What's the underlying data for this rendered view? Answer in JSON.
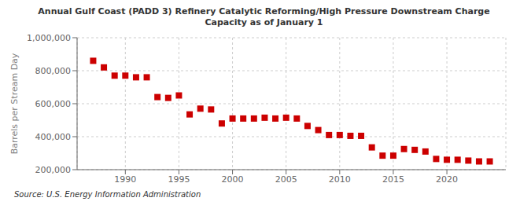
{
  "chart_data": {
    "type": "scatter",
    "title": "Annual Gulf Coast (PADD 3) Refinery Catalytic Reforming/High Pressure Downstream Charge\nCapacity as of January 1",
    "ylabel": "Barrels per Stream Day",
    "annotations": [
      "Source: U.S. Energy Information Administration"
    ],
    "x": [
      1987,
      1988,
      1989,
      1990,
      1991,
      1992,
      1993,
      1994,
      1995,
      1996,
      1997,
      1998,
      1999,
      2000,
      2001,
      2002,
      2003,
      2004,
      2005,
      2006,
      2007,
      2008,
      2009,
      2010,
      2011,
      2012,
      2013,
      2014,
      2015,
      2016,
      2017,
      2018,
      2019,
      2020,
      2021,
      2022,
      2023,
      2024
    ],
    "values": [
      860000,
      820000,
      770000,
      770000,
      760000,
      760000,
      640000,
      635000,
      650000,
      535000,
      570000,
      565000,
      480000,
      510000,
      510000,
      510000,
      515000,
      510000,
      515000,
      510000,
      465000,
      440000,
      410000,
      410000,
      405000,
      405000,
      335000,
      285000,
      285000,
      325000,
      320000,
      310000,
      265000,
      260000,
      260000,
      255000,
      250000,
      250000
    ],
    "color": "#cc0000",
    "marker": "square",
    "xlim": [
      1985.5,
      2025.5
    ],
    "xticks": [
      1990,
      1995,
      2000,
      2005,
      2010,
      2015,
      2020
    ],
    "ylim": [
      200000,
      1000000
    ],
    "yticks": [
      {
        "value": 200000,
        "label": "200,000"
      },
      {
        "value": 400000,
        "label": "400,000"
      },
      {
        "value": 600000,
        "label": "600,000"
      },
      {
        "value": 800000,
        "label": "800,000"
      },
      {
        "value": 1000000,
        "label": "1,000,000"
      }
    ],
    "grid": true
  }
}
